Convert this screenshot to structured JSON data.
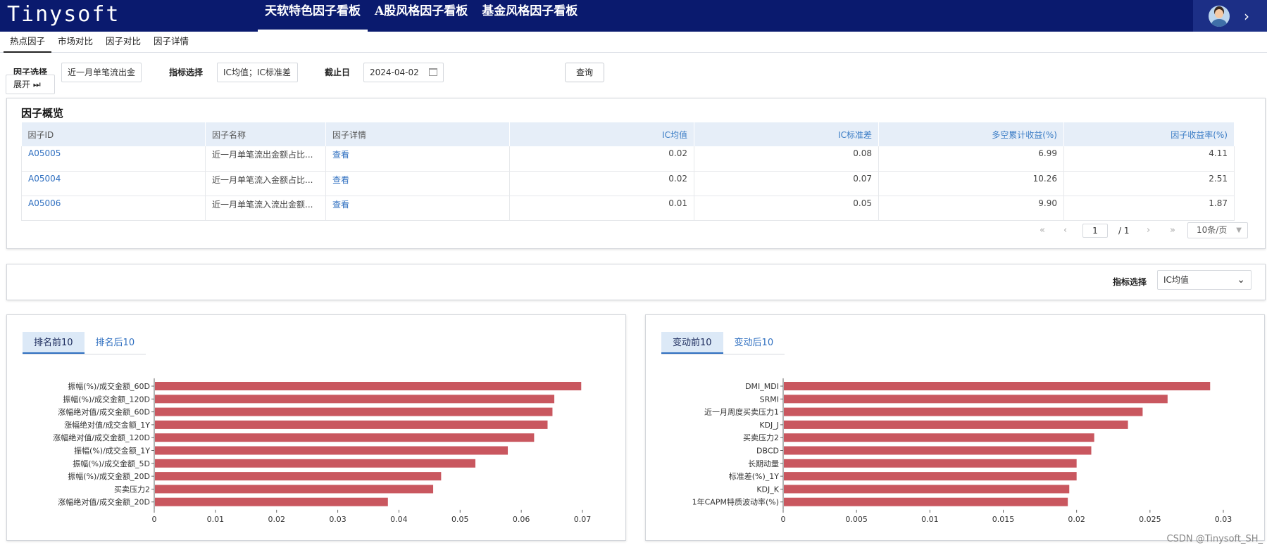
{
  "brand": "Tinysoft",
  "topnav": [
    "天软特色因子看板",
    "A股风格因子看板",
    "基金风格因子看板"
  ],
  "subtabs": [
    "热点因子",
    "市场对比",
    "因子对比",
    "因子详情"
  ],
  "filters": {
    "factor_label": "因子选择",
    "factor_value": "近一月单笔流出金",
    "metric_label": "指标选择",
    "metric_value": "IC均值；IC标准差",
    "date_label": "截止日",
    "date_value": "2024-04-02",
    "expand_label": "展开 ⏭",
    "query_label": "查询"
  },
  "overview": {
    "title": "因子概览",
    "columns": [
      "因子ID",
      "因子名称",
      "因子详情",
      "IC均值",
      "IC标准差",
      "多空累计收益(%)",
      "因子收益率(%)"
    ],
    "rows": [
      {
        "id": "A05005",
        "name": "近一月单笔流出金额占比...",
        "detail": "查看",
        "ic_mean": "0.02",
        "ic_std": "0.08",
        "ls_return": "6.99",
        "factor_return": "4.11"
      },
      {
        "id": "A05004",
        "name": "近一月单笔流入金额占比...",
        "detail": "查看",
        "ic_mean": "0.02",
        "ic_std": "0.07",
        "ls_return": "10.26",
        "factor_return": "2.51"
      },
      {
        "id": "A05006",
        "name": "近一月单笔流入流出金额...",
        "detail": "查看",
        "ic_mean": "0.01",
        "ic_std": "0.05",
        "ls_return": "9.90",
        "factor_return": "1.87"
      }
    ],
    "pager": {
      "page": "1",
      "total": "/ 1",
      "page_size": "10条/页"
    }
  },
  "metric_select": {
    "label": "指标选择",
    "value": "IC均值"
  },
  "left_chart": {
    "tabs": [
      "排名前10",
      "排名后10"
    ]
  },
  "right_chart": {
    "tabs": [
      "变动前10",
      "变动后10"
    ]
  },
  "chart_data": [
    {
      "type": "bar",
      "orientation": "horizontal",
      "categories": [
        "振幅(%)/成交金额_60D",
        "振幅(%)/成交金额_120D",
        "涨幅绝对值/成交金额_60D",
        "涨幅绝对值/成交金额_1Y",
        "涨幅绝对值/成交金额_120D",
        "振幅(%)/成交金额_1Y",
        "振幅(%)/成交金额_5D",
        "振幅(%)/成交金额_20D",
        "买卖压力2",
        "涨幅绝对值/成交金额_20D"
      ],
      "values": [
        0.0698,
        0.0654,
        0.0651,
        0.0643,
        0.0621,
        0.0578,
        0.0525,
        0.0469,
        0.0456,
        0.0382
      ],
      "xlim": [
        0,
        0.07
      ],
      "xticks": [
        "0",
        "0.01",
        "0.02",
        "0.03",
        "0.04",
        "0.05",
        "0.06",
        "0.07"
      ],
      "color": "#c9575f"
    },
    {
      "type": "bar",
      "orientation": "horizontal",
      "categories": [
        "DMI_MDI",
        "SRMI",
        "近一月周度买卖压力1",
        "KDJ_J",
        "买卖压力2",
        "DBCD",
        "长期动量",
        "标准差(%)_1Y",
        "KDJ_K",
        "1年CAPM特质波动率(%)"
      ],
      "values": [
        0.0291,
        0.0262,
        0.0245,
        0.0235,
        0.0212,
        0.021,
        0.02,
        0.02,
        0.0195,
        0.0194
      ],
      "xlim": [
        0,
        0.03
      ],
      "xticks": [
        "0",
        "0.005",
        "0.01",
        "0.015",
        "0.02",
        "0.025",
        "0.03"
      ],
      "color": "#c9575f"
    }
  ],
  "watermark": "CSDN @Tinysoft_SH_"
}
